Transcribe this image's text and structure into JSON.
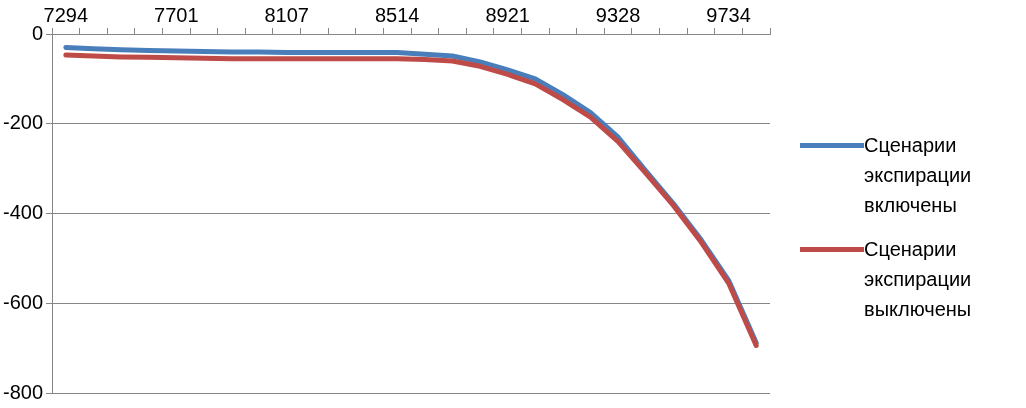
{
  "chart_data": {
    "type": "line",
    "categories": [
      "7294",
      null,
      null,
      null,
      "7701",
      null,
      null,
      null,
      "8107",
      null,
      null,
      null,
      "8514",
      null,
      null,
      null,
      "8921",
      null,
      null,
      null,
      "9328",
      null,
      null,
      null,
      "9734",
      null
    ],
    "series": [
      {
        "name": "Сценарии экспирации включены",
        "color": "#4a7ebb",
        "values": [
          -30,
          -33,
          -35,
          -37,
          -38,
          -39,
          -40,
          -40,
          -41,
          -41,
          -41,
          -41,
          -41,
          -45,
          -49,
          -62,
          -80,
          -100,
          -135,
          -175,
          -230,
          -305,
          -378,
          -458,
          -549,
          -688
        ]
      },
      {
        "name": "Сценарии экспирации выключены",
        "color": "#be4b48",
        "values": [
          -47,
          -49,
          -51,
          -52,
          -53,
          -54,
          -55,
          -55,
          -55,
          -55,
          -55,
          -55,
          -55,
          -57,
          -60,
          -72,
          -90,
          -111,
          -146,
          -185,
          -240,
          -310,
          -382,
          -463,
          -555,
          -694
        ]
      }
    ],
    "ylim": [
      -800,
      0
    ],
    "yticks": [
      -800,
      -600,
      -400,
      -200,
      0
    ],
    "grid": "y",
    "legend": "right",
    "marker": "none",
    "line_style": "solid"
  }
}
